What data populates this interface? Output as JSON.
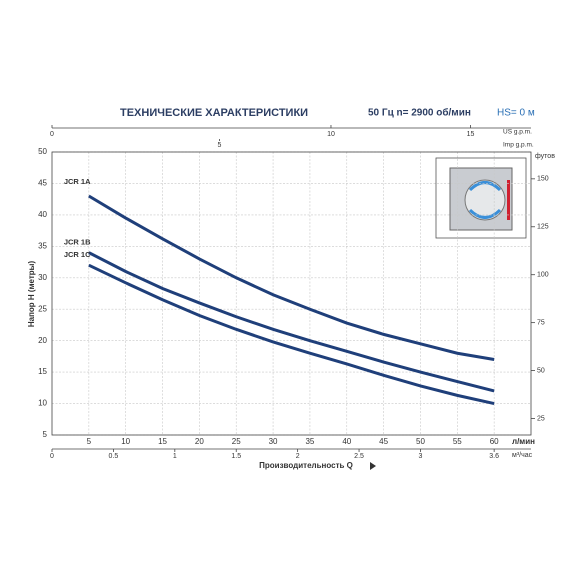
{
  "chart_data": {
    "type": "line",
    "title": "ТЕХНИЧЕСКИЕ ХАРАКТЕРИСТИКИ",
    "subtitle": "50 Гц   n= 2900 об/мин",
    "annotation": "HS= 0 м",
    "xlabel": "Производительность Q",
    "xunit": "л/мин",
    "ylabel": "Напор H (метры)",
    "x": [
      5,
      10,
      15,
      20,
      25,
      30,
      35,
      40,
      45,
      50,
      55,
      60
    ],
    "xlim": [
      0,
      65
    ],
    "xticks": [
      5,
      10,
      15,
      20,
      25,
      30,
      35,
      40,
      45,
      50,
      55,
      60
    ],
    "ylim": [
      5,
      50
    ],
    "yticks": [
      5,
      10,
      15,
      20,
      25,
      30,
      35,
      40,
      45,
      50
    ],
    "y2unit": "футов",
    "y2lim": [
      16.4,
      164
    ],
    "y2ticks": [
      25,
      50,
      75,
      100,
      125,
      150
    ],
    "x2unit": "м³/час",
    "x2lim": [
      0,
      3.9
    ],
    "x2ticks": [
      0,
      0.5,
      1,
      1.5,
      2,
      2.5,
      3,
      3.6
    ],
    "x3unit": "US g.p.m.",
    "x3lim": [
      0,
      17.17
    ],
    "x3ticks": [
      0,
      10,
      15
    ],
    "x4unit": "Imp g.p.m.",
    "x4lim": [
      0,
      14.3
    ],
    "x4ticks": [
      5
    ],
    "grid": true,
    "series": [
      {
        "name": "JCR 1A",
        "color": "#1f3f7a",
        "values": [
          43,
          39.5,
          36.2,
          33,
          30,
          27.3,
          25,
          22.8,
          21,
          19.5,
          18,
          17
        ]
      },
      {
        "name": "JCR 1B",
        "color": "#1f3f7a",
        "values": [
          34,
          31,
          28.3,
          26,
          23.8,
          21.8,
          20,
          18.3,
          16.6,
          15,
          13.5,
          12
        ]
      },
      {
        "name": "JCR 1C",
        "color": "#1f3f7a",
        "values": [
          32,
          29.2,
          26.5,
          24,
          21.8,
          19.8,
          18,
          16.3,
          14.5,
          12.8,
          11.3,
          10
        ]
      }
    ]
  }
}
